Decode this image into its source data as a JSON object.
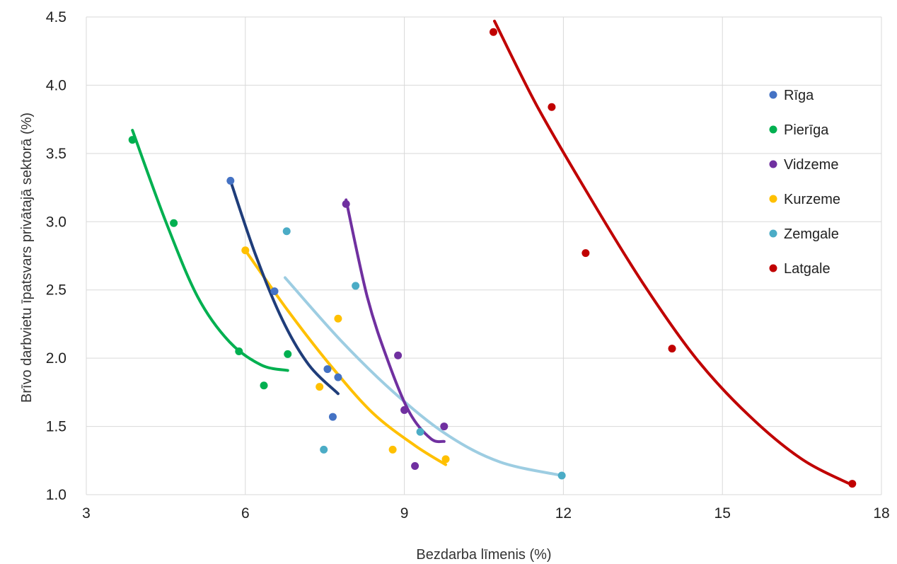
{
  "chart_data": {
    "type": "scatter",
    "title": "",
    "xlabel": "Bezdarba līmenis (%)",
    "ylabel": "Brīvo darbvietu īpatsvars privātajā sektorā (%)",
    "xlim": [
      3,
      18
    ],
    "ylim": [
      1.0,
      4.5
    ],
    "x_ticks": [
      "3",
      "6",
      "9",
      "12",
      "15",
      "18"
    ],
    "y_ticks": [
      "1.0",
      "1.5",
      "2.0",
      "2.5",
      "3.0",
      "3.5",
      "4.0",
      "4.5"
    ],
    "grid": true,
    "legend_position": "right",
    "series": [
      {
        "name": "Rīga",
        "color": "#4472c4",
        "trend_color": "#1f3d7a",
        "points": [
          [
            5.72,
            3.3
          ],
          [
            6.55,
            2.49
          ],
          [
            7.55,
            1.92
          ],
          [
            7.75,
            1.86
          ],
          [
            7.65,
            1.57
          ]
        ],
        "trend": [
          [
            5.72,
            3.3
          ],
          [
            6.2,
            2.75
          ],
          [
            6.7,
            2.28
          ],
          [
            7.2,
            1.95
          ],
          [
            7.75,
            1.74
          ]
        ]
      },
      {
        "name": "Pierīga",
        "color": "#00b050",
        "trend_color": "#00b050",
        "points": [
          [
            3.87,
            3.6
          ],
          [
            4.65,
            2.99
          ],
          [
            5.88,
            2.05
          ],
          [
            6.35,
            1.8
          ],
          [
            6.8,
            2.03
          ]
        ],
        "trend": [
          [
            3.87,
            3.67
          ],
          [
            4.5,
            3.0
          ],
          [
            5.1,
            2.45
          ],
          [
            5.7,
            2.12
          ],
          [
            6.3,
            1.95
          ],
          [
            6.8,
            1.91
          ]
        ]
      },
      {
        "name": "Vidzeme",
        "color": "#7030a0",
        "trend_color": "#7030a0",
        "points": [
          [
            7.9,
            3.13
          ],
          [
            8.88,
            2.02
          ],
          [
            9.0,
            1.62
          ],
          [
            9.75,
            1.5
          ],
          [
            9.2,
            1.21
          ]
        ],
        "trend": [
          [
            7.9,
            3.16
          ],
          [
            8.3,
            2.45
          ],
          [
            8.7,
            1.97
          ],
          [
            9.1,
            1.6
          ],
          [
            9.5,
            1.41
          ],
          [
            9.75,
            1.39
          ]
        ]
      },
      {
        "name": "Kurzeme",
        "color": "#ffc000",
        "trend_color": "#ffc000",
        "points": [
          [
            6.0,
            2.79
          ],
          [
            7.75,
            2.29
          ],
          [
            7.4,
            1.79
          ],
          [
            8.78,
            1.33
          ],
          [
            9.78,
            1.26
          ]
        ],
        "trend": [
          [
            6.0,
            2.79
          ],
          [
            6.8,
            2.35
          ],
          [
            7.6,
            1.95
          ],
          [
            8.4,
            1.6
          ],
          [
            9.2,
            1.36
          ],
          [
            9.78,
            1.22
          ]
        ]
      },
      {
        "name": "Zemgale",
        "color": "#4bacc6",
        "trend_color": "#9dcde2",
        "points": [
          [
            6.78,
            2.93
          ],
          [
            8.08,
            2.53
          ],
          [
            9.3,
            1.46
          ],
          [
            7.48,
            1.33
          ],
          [
            11.97,
            1.14
          ]
        ],
        "trend": [
          [
            6.75,
            2.59
          ],
          [
            7.8,
            2.13
          ],
          [
            8.8,
            1.75
          ],
          [
            9.8,
            1.44
          ],
          [
            10.8,
            1.24
          ],
          [
            11.97,
            1.14
          ]
        ]
      },
      {
        "name": "Latgale",
        "color": "#c00000",
        "trend_color": "#c00000",
        "points": [
          [
            10.68,
            4.39
          ],
          [
            11.78,
            3.84
          ],
          [
            12.42,
            2.77
          ],
          [
            14.05,
            2.07
          ],
          [
            17.45,
            1.08
          ]
        ],
        "trend": [
          [
            10.7,
            4.47
          ],
          [
            11.5,
            3.85
          ],
          [
            12.5,
            3.18
          ],
          [
            13.5,
            2.55
          ],
          [
            14.5,
            2.0
          ],
          [
            15.5,
            1.58
          ],
          [
            16.5,
            1.26
          ],
          [
            17.45,
            1.07
          ]
        ]
      }
    ]
  }
}
